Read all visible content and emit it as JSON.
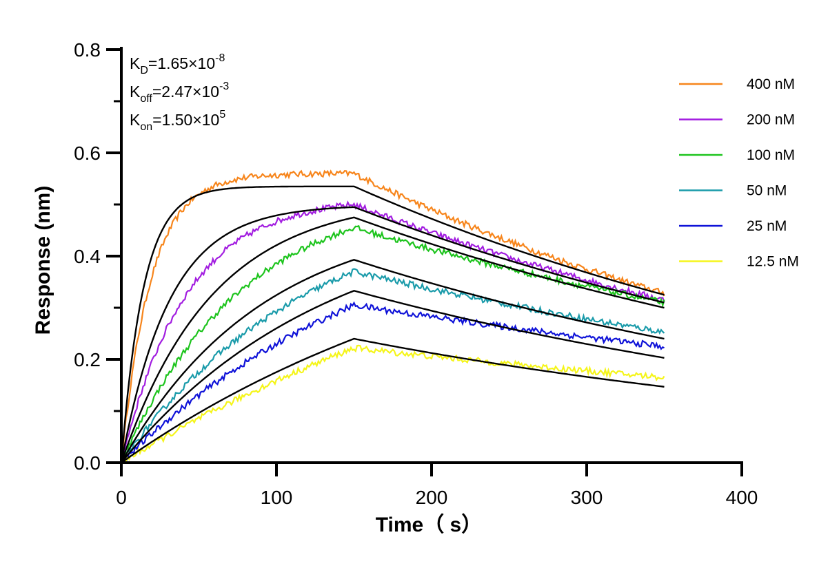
{
  "chart_data": {
    "type": "line",
    "xlabel": "Time（ s）",
    "ylabel": "Response (nm)",
    "xlim": [
      0,
      400
    ],
    "ylim": [
      0,
      0.8
    ],
    "x_ticks": [
      "0",
      "100",
      "200",
      "300",
      "400"
    ],
    "y_ticks": [
      "0.0",
      "0.2",
      "0.4",
      "0.6",
      "0.8"
    ],
    "grid": false,
    "legend_position": "top-right",
    "association_end_time": 150,
    "end_time": 350,
    "annotations": [
      {
        "name": "K",
        "sub": "D",
        "value": "=1.65×10",
        "exp": "-8"
      },
      {
        "name": "K",
        "sub": "off",
        "value": "=2.47×10",
        "exp": "-3"
      },
      {
        "name": "K",
        "sub": "on",
        "value": "=1.50×10",
        "exp": "5"
      }
    ],
    "series": [
      {
        "name": "400 nM",
        "color": "#F7851B",
        "data_peak": 0.56,
        "data_end": 0.328,
        "fit_peak": 0.535,
        "fit_end": 0.325,
        "fit_rate": 0.07
      },
      {
        "name": "200 nM",
        "color": "#A21DE0",
        "data_peak": 0.5,
        "data_end": 0.315,
        "fit_peak": 0.495,
        "fit_end": 0.31,
        "fit_rate": 0.032
      },
      {
        "name": "100 nM",
        "color": "#1DC41D",
        "data_peak": 0.455,
        "data_end": 0.31,
        "fit_peak": 0.475,
        "fit_end": 0.3,
        "fit_rate": 0.017
      },
      {
        "name": "50 nM",
        "color": "#1A9BAA",
        "data_peak": 0.37,
        "data_end": 0.253,
        "fit_peak": 0.393,
        "fit_end": 0.24,
        "fit_rate": 0.011
      },
      {
        "name": "25 nM",
        "color": "#0F12D8",
        "data_peak": 0.305,
        "data_end": 0.225,
        "fit_peak": 0.333,
        "fit_end": 0.203,
        "fit_rate": 0.0075
      },
      {
        "name": "12.5 nM",
        "color": "#F5F51A",
        "data_peak": 0.222,
        "data_end": 0.165,
        "fit_peak": 0.24,
        "fit_end": 0.147,
        "fit_rate": 0.004
      }
    ]
  }
}
